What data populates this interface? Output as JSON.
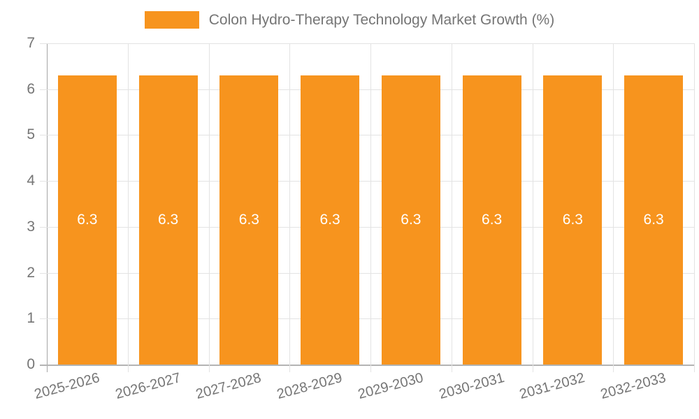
{
  "page": {
    "background": "#ffffff"
  },
  "legend": {
    "label": "Colon Hydro-Therapy Technology Market Growth (%)",
    "swatch_color": "#F7941E"
  },
  "chart_data": {
    "type": "bar",
    "title": "Colon Hydro-Therapy Technology Market Growth (%)",
    "categories": [
      "2025-2026",
      "2026-2027",
      "2027-2028",
      "2028-2029",
      "2029-2030",
      "2030-2031",
      "2031-2032",
      "2032-2033"
    ],
    "series": [
      {
        "name": "Colon Hydro-Therapy Technology Market Growth (%)",
        "values": [
          6.3,
          6.3,
          6.3,
          6.3,
          6.3,
          6.3,
          6.3,
          6.3
        ]
      }
    ],
    "value_labels": [
      "6.3",
      "6.3",
      "6.3",
      "6.3",
      "6.3",
      "6.3",
      "6.3",
      "6.3"
    ],
    "xlabel": "",
    "ylabel": "",
    "ylim": [
      0,
      7
    ],
    "yticks": [
      0,
      1,
      2,
      3,
      4,
      5,
      6,
      7
    ],
    "grid": true,
    "legend_position": "top-center",
    "colors": {
      "bar": "#F7941E",
      "value_label": "#FFFFFF",
      "axis_text": "#757575",
      "gridline": "#E3E3E3",
      "axis_y_line": "#A6A6A6",
      "axis_x_line": "#B3B3B3"
    }
  }
}
